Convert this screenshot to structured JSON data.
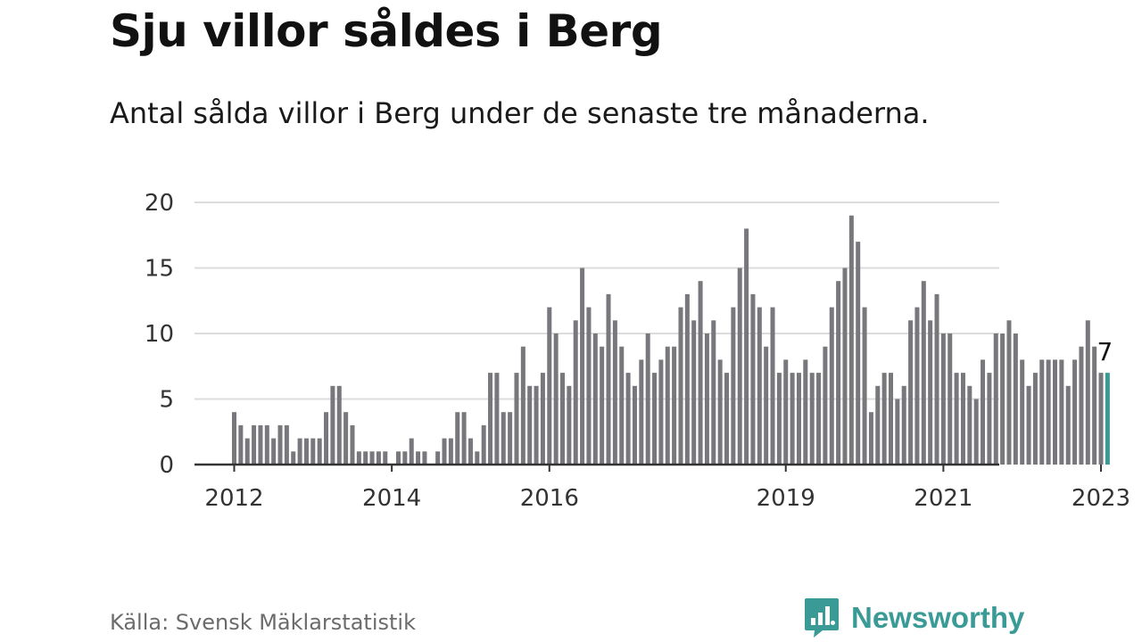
{
  "title": "Sju villor såldes i Berg",
  "subtitle": "Antal sålda villor i Berg under de senaste tre månaderna.",
  "source": "Källa: Svensk Mäklarstatistik",
  "brand": {
    "name": "Newsworthy",
    "icon": "newsworthy-logo-icon",
    "color": "#3a9b96"
  },
  "chart_data": {
    "type": "bar",
    "start": "2012-01",
    "end": "2023-02",
    "values": [
      4,
      3,
      2,
      3,
      3,
      3,
      2,
      3,
      3,
      1,
      2,
      2,
      2,
      2,
      4,
      6,
      6,
      4,
      3,
      1,
      1,
      1,
      1,
      1,
      0,
      1,
      1,
      2,
      1,
      1,
      0,
      1,
      2,
      2,
      4,
      4,
      2,
      1,
      3,
      7,
      7,
      4,
      4,
      7,
      9,
      6,
      6,
      7,
      12,
      10,
      7,
      6,
      11,
      15,
      12,
      10,
      9,
      13,
      11,
      9,
      7,
      6,
      8,
      10,
      7,
      8,
      9,
      9,
      12,
      13,
      11,
      14,
      10,
      11,
      8,
      7,
      12,
      15,
      18,
      13,
      12,
      9,
      12,
      7,
      8,
      7,
      7,
      8,
      7,
      7,
      9,
      12,
      14,
      15,
      19,
      17,
      12,
      4,
      6,
      7,
      7,
      5,
      6,
      11,
      12,
      14,
      11,
      13,
      10,
      10,
      7,
      7,
      6,
      5,
      8,
      7,
      10,
      10,
      11,
      10,
      8,
      6,
      7,
      8,
      8,
      8,
      8,
      6,
      8,
      9,
      11,
      9,
      7,
      7
    ],
    "highlight_index": 133,
    "highlight_label": "7",
    "ylim": [
      0,
      20
    ],
    "yticks": [
      "0",
      "5",
      "10",
      "15",
      "20"
    ],
    "xticks": [
      {
        "label": "2012",
        "month_index": 0
      },
      {
        "label": "2014",
        "month_index": 24
      },
      {
        "label": "2016",
        "month_index": 48
      },
      {
        "label": "2019",
        "month_index": 84
      },
      {
        "label": "2021",
        "month_index": 108
      },
      {
        "label": "2023",
        "month_index": 132
      }
    ],
    "bar_color": "#77777c",
    "highlight_color": "#3a9b96",
    "grid": true,
    "legend": "none"
  }
}
